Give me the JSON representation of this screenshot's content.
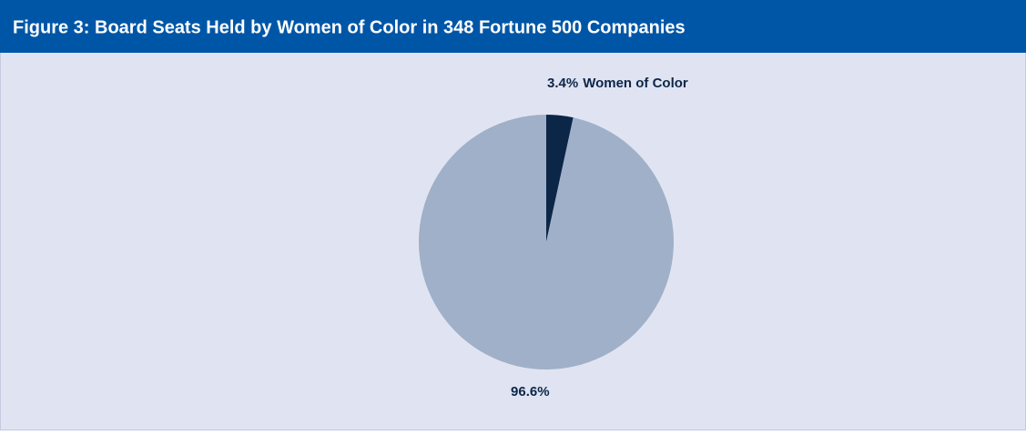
{
  "chart_data": {
    "type": "pie",
    "title": "Figure 3: Board Seats Held by Women of Color in 348 Fortune 500 Companies",
    "categories": [
      "Women of Color",
      null
    ],
    "values": [
      3.4,
      96.6
    ],
    "value_labels": [
      "3.4%",
      "96.6%"
    ],
    "colors": [
      "#0c2648",
      "#9fb0c8"
    ],
    "start_angle": 0,
    "direction": "clockwise"
  }
}
